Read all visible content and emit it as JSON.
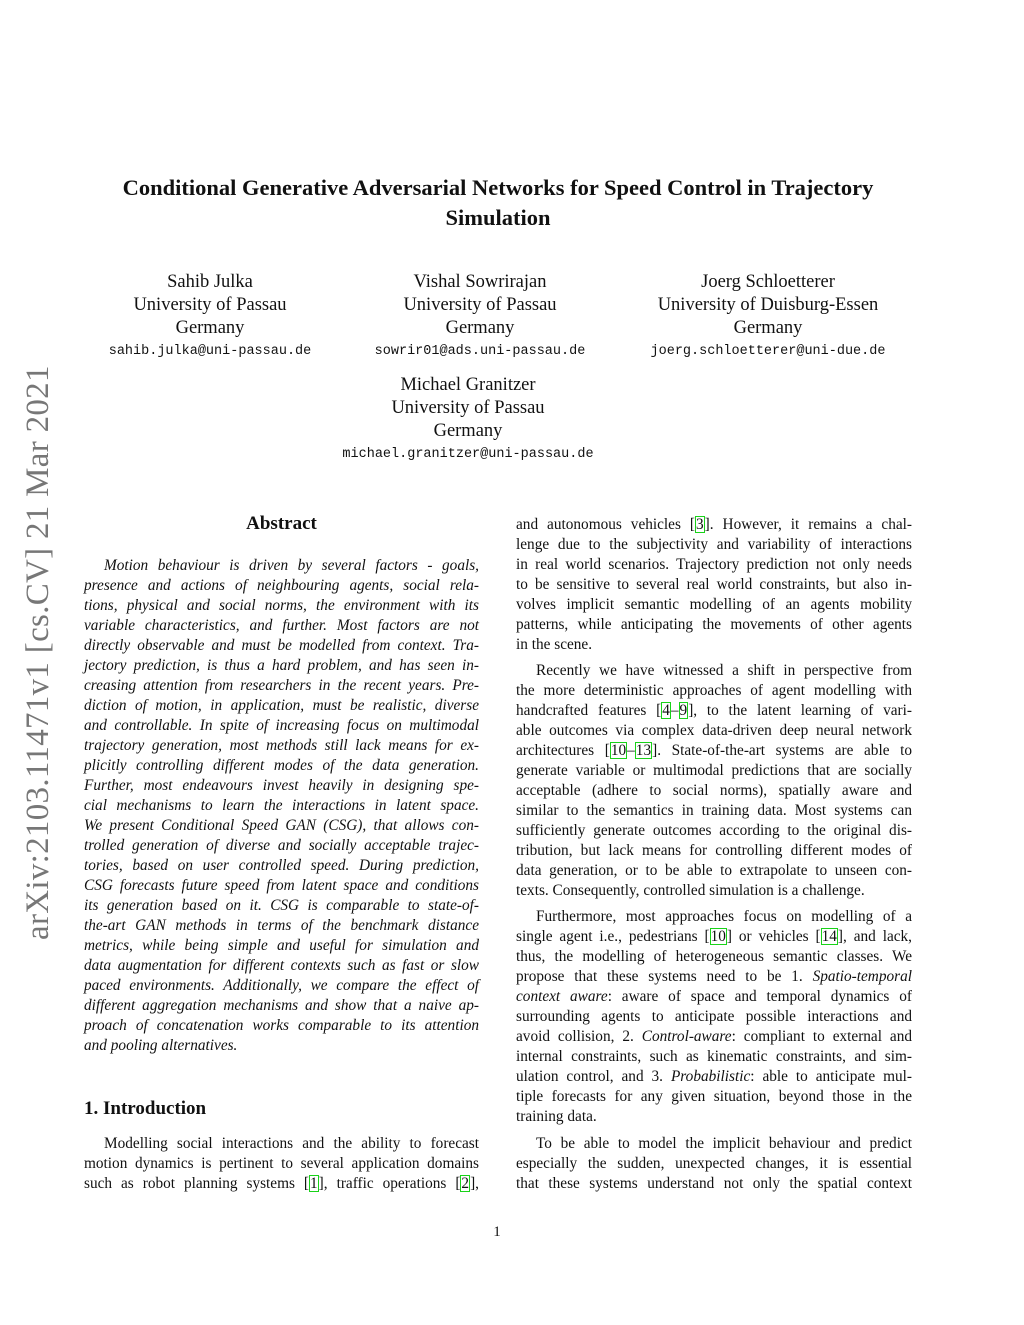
{
  "arxiv_stamp": "arXiv:2103.11471v1  [cs.CV]  21 Mar 2021",
  "title": [
    "Conditional Generative Adversarial Networks for Speed Control in Trajectory",
    "Simulation"
  ],
  "authors": [
    {
      "name": "Sahib Julka",
      "affiliation": "University of Passau",
      "country": "Germany",
      "email": "sahib.julka@uni-passau.de"
    },
    {
      "name": "Vishal Sowrirajan",
      "affiliation": "University of Passau",
      "country": "Germany",
      "email": "sowrir01@ads.uni-passau.de"
    },
    {
      "name": "Joerg Schloetterer",
      "affiliation": "University of Duisburg-Essen",
      "country": "Germany",
      "email": "joerg.schloetterer@uni-due.de"
    },
    {
      "name": "Michael Granitzer",
      "affiliation": "University of Passau",
      "country": "Germany",
      "email": "michael.granitzer@uni-passau.de"
    }
  ],
  "abstract": {
    "heading": "Abstract",
    "lines": [
      "Motion behaviour is driven by several factors - goals,",
      "presence and actions of neighbouring agents, social rela-",
      "tions, physical and social norms, the environment with its",
      "variable characteristics, and further.  Most factors are not",
      "directly observable and must be modelled from context. Tra-",
      "jectory prediction, is thus a hard problem, and has seen in-",
      "creasing attention from researchers in the recent years. Pre-",
      "diction of motion, in application, must be realistic, diverse",
      "and controllable. In spite of increasing focus on multimodal",
      "trajectory generation, most methods still lack means for ex-",
      "plicitly controlling different modes of the data generation.",
      "Further, most endeavours invest heavily in designing spe-",
      "cial mechanisms to learn the interactions in latent space.",
      "We present Conditional Speed GAN (CSG), that allows con-",
      "trolled generation of diverse and socially acceptable trajec-",
      "tories, based on user controlled speed.  During prediction,",
      "CSG forecasts future speed from latent space and conditions",
      "its generation based on it.  CSG is comparable to state-of-",
      "the-art GAN methods in terms of the benchmark distance",
      "metrics, while being simple and useful for simulation and",
      "data augmentation for different contexts such as fast or slow",
      "paced environments.  Additionally, we compare the effect of",
      "different aggregation mechanisms and show that a naive ap-",
      "proach of concatenation works comparable to its attention",
      "and pooling alternatives."
    ]
  },
  "introduction": {
    "heading": "1. Introduction",
    "left_lines": [
      "Modelling social interactions and the ability to forecast",
      "motion dynamics is pertinent to several application domains",
      "such as robot planning systems [1], traffic operations [2],"
    ],
    "right_paragraphs": [
      [
        "and autonomous vehicles [3].  However, it remains a chal-",
        "lenge due to the subjectivity and variability of interactions",
        "in real world scenarios. Trajectory prediction not only needs",
        "to be sensitive to several real world constraints, but also in-",
        "volves implicit semantic modelling of an agents mobility",
        "patterns, while anticipating the movements of other agents",
        "in the scene."
      ],
      [
        "Recently we have witnessed a shift in perspective from",
        "the more deterministic approaches of agent modelling with",
        "handcrafted features [4–9], to the latent learning of vari-",
        "able outcomes via complex data-driven deep neural network",
        "architectures [10–13].  State-of-the-art systems are able to",
        "generate variable or multimodal predictions that are socially",
        "acceptable (adhere to social norms), spatially aware and",
        "similar to the semantics in training data. Most systems can",
        "sufficiently generate outcomes according to the original dis-",
        "tribution, but lack means for controlling different modes of",
        "data generation, or to be able to extrapolate to unseen con-",
        "texts. Consequently, controlled simulation is a challenge."
      ],
      [
        "Furthermore, most approaches focus on modelling of a",
        "single agent i.e., pedestrians [10] or vehicles [14], and lack,",
        "thus, the modelling of heterogeneous semantic classes.  We",
        "propose that these systems need to be 1. *Spatio-temporal*",
        "*context aware*:  aware of space and temporal dynamics of",
        "surrounding agents to anticipate possible interactions and",
        "avoid collision, 2. *Control-aware*: compliant to external and",
        "internal constraints, such as kinematic constraints, and sim-",
        "ulation control, and 3. *Probabilistic*: able to anticipate mul-",
        "tiple forecasts for any given situation, beyond those in the",
        "training data."
      ],
      [
        "To be able to model the implicit behaviour and predict",
        "especially the sudden, unexpected changes, it is essential",
        "that these systems understand not only the spatial context"
      ]
    ]
  },
  "page_number": "1",
  "colors": {
    "citation_box": "#19d219",
    "stamp": "#777777"
  }
}
